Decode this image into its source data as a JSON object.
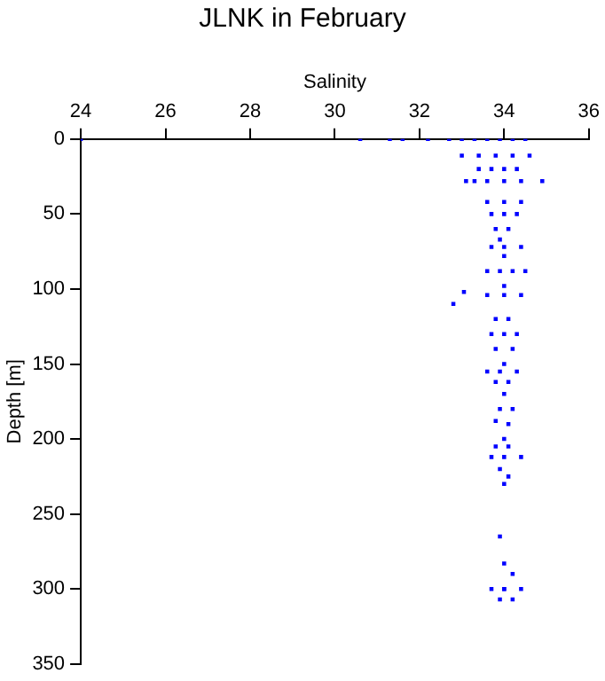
{
  "chart_data": {
    "type": "scatter",
    "title": "JLNK in February",
    "xlabel": "Salinity",
    "ylabel": "Depth [m]",
    "xlim": [
      24,
      36
    ],
    "xticks": [
      24,
      26,
      28,
      30,
      32,
      34,
      36
    ],
    "ylim": [
      350,
      0
    ],
    "yticks": [
      0,
      50,
      100,
      150,
      200,
      250,
      300,
      350
    ],
    "grid": false,
    "legend": false,
    "marker": "square",
    "series": [
      {
        "color": "#0000ff",
        "x": [
          24,
          30.6,
          31.3,
          31.6,
          32.2,
          32.7,
          33.0,
          33.3,
          33.6,
          33.9,
          34.2,
          34.5,
          33.0,
          33.4,
          33.8,
          34.2,
          34.6,
          33.4,
          33.7,
          34.0,
          34.3,
          33.1,
          33.3,
          33.6,
          34.0,
          34.4,
          34.9,
          33.6,
          34.0,
          34.4,
          33.7,
          34.0,
          34.3,
          33.8,
          34.1,
          33.9,
          33.7,
          34.0,
          34.4,
          34.0,
          33.6,
          33.9,
          34.2,
          34.5,
          34.0,
          33.6,
          34.0,
          34.4,
          32.8,
          33.05,
          33.8,
          34.1,
          33.7,
          34.0,
          34.3,
          33.8,
          34.2,
          34.0,
          33.6,
          33.9,
          34.3,
          33.8,
          34.1,
          34.0,
          33.9,
          34.2,
          33.8,
          34.1,
          34.0,
          33.8,
          34.1,
          33.7,
          34.0,
          34.4,
          33.9,
          34.1,
          34.0,
          33.9,
          34.0,
          34.2,
          33.7,
          34.0,
          34.4,
          34.0,
          33.9,
          34.2
        ],
        "values": [
          0,
          0,
          0,
          0,
          0,
          0,
          0,
          0,
          0,
          0,
          0,
          0,
          11,
          11,
          11,
          11,
          11,
          20,
          20,
          20,
          20,
          28,
          28,
          28,
          28,
          28,
          28,
          42,
          42,
          42,
          50,
          50,
          50,
          60,
          60,
          67,
          72,
          72,
          72,
          78,
          88,
          88,
          88,
          88,
          98,
          104,
          104,
          104,
          110,
          102,
          120,
          120,
          130,
          130,
          130,
          140,
          140,
          150,
          155,
          155,
          155,
          162,
          162,
          170,
          180,
          180,
          188,
          190,
          200,
          205,
          205,
          212,
          212,
          212,
          220,
          225,
          230,
          265,
          283,
          290,
          300,
          300,
          300,
          300,
          307,
          307
        ]
      }
    ]
  }
}
